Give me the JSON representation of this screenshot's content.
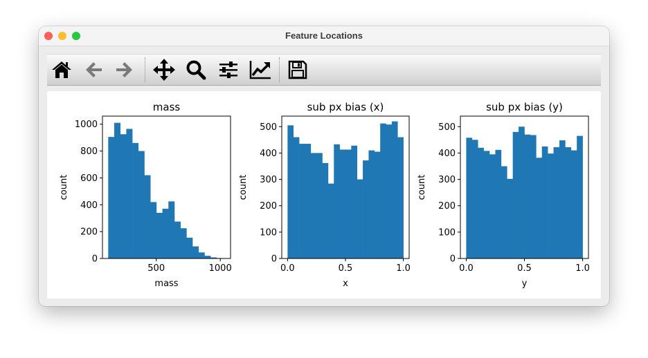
{
  "window": {
    "title": "Feature Locations"
  },
  "traffic_lights": {
    "close": "#ff5f57",
    "minimize": "#febc2e",
    "zoom": "#28c840"
  },
  "toolbar": {
    "items": [
      {
        "name": "home-button",
        "icon": "home-icon",
        "enabled": true
      },
      {
        "name": "back-button",
        "icon": "arrow-left-icon",
        "enabled": false
      },
      {
        "name": "forward-button",
        "icon": "arrow-right-icon",
        "enabled": false
      },
      {
        "name": "pan-button",
        "icon": "move-icon",
        "enabled": true
      },
      {
        "name": "zoom-button",
        "icon": "magnifier-icon",
        "enabled": true
      },
      {
        "name": "subplots-button",
        "icon": "sliders-icon",
        "enabled": true
      },
      {
        "name": "axes-edit-button",
        "icon": "line-chart-icon",
        "enabled": true
      },
      {
        "name": "save-button",
        "icon": "floppy-disk-icon",
        "enabled": true
      }
    ]
  },
  "bar_color": "#1f77b4",
  "chart_data": [
    {
      "type": "bar",
      "title": "mass",
      "xlabel": "mass",
      "ylabel": "count",
      "xlim": [
        80,
        1080
      ],
      "ylim": [
        0,
        1060
      ],
      "xticks": [
        500,
        1000
      ],
      "xtick_labels": [
        "500",
        "1000"
      ],
      "yticks": [
        0,
        200,
        400,
        600,
        800,
        1000
      ],
      "ytick_labels": [
        "0",
        "200",
        "400",
        "600",
        "800",
        "1000"
      ],
      "bin_edges": [
        125,
        172,
        219,
        266,
        313,
        360,
        407,
        454,
        501,
        548,
        595,
        642,
        689,
        736,
        783,
        830,
        877,
        924,
        971,
        1018,
        1065
      ],
      "counts": [
        905,
        1010,
        925,
        965,
        860,
        800,
        620,
        420,
        340,
        370,
        425,
        275,
        225,
        155,
        90,
        45,
        20,
        8,
        3,
        1
      ]
    },
    {
      "type": "bar",
      "title": "sub px bias (x)",
      "xlabel": "x",
      "ylabel": "count",
      "xlim": [
        -0.05,
        1.05
      ],
      "ylim": [
        0,
        540
      ],
      "xticks": [
        0.0,
        0.5,
        1.0
      ],
      "xtick_labels": [
        "0.0",
        "0.5",
        "1.0"
      ],
      "yticks": [
        0,
        100,
        200,
        300,
        400,
        500
      ],
      "ytick_labels": [
        "0",
        "100",
        "200",
        "300",
        "400",
        "500"
      ],
      "bin_edges": [
        0.0,
        0.05,
        0.1,
        0.15,
        0.2,
        0.25,
        0.3,
        0.35,
        0.4,
        0.45,
        0.5,
        0.55,
        0.6,
        0.65,
        0.7,
        0.75,
        0.8,
        0.85,
        0.9,
        0.95,
        1.0
      ],
      "counts": [
        505,
        460,
        435,
        435,
        400,
        400,
        362,
        284,
        433,
        413,
        413,
        428,
        300,
        372,
        410,
        405,
        512,
        508,
        520,
        460
      ]
    },
    {
      "type": "bar",
      "title": "sub px bias (y)",
      "xlabel": "y",
      "ylabel": "count",
      "xlim": [
        -0.05,
        1.05
      ],
      "ylim": [
        0,
        540
      ],
      "xticks": [
        0.0,
        0.5,
        1.0
      ],
      "xtick_labels": [
        "0.0",
        "0.5",
        "1.0"
      ],
      "yticks": [
        0,
        100,
        200,
        300,
        400,
        500
      ],
      "ytick_labels": [
        "0",
        "100",
        "200",
        "300",
        "400",
        "500"
      ],
      "bin_edges": [
        0.0,
        0.05,
        0.1,
        0.15,
        0.2,
        0.25,
        0.3,
        0.35,
        0.4,
        0.45,
        0.5,
        0.55,
        0.6,
        0.65,
        0.7,
        0.75,
        0.8,
        0.85,
        0.9,
        0.95,
        1.0
      ],
      "counts": [
        458,
        450,
        420,
        408,
        395,
        412,
        350,
        302,
        480,
        500,
        470,
        468,
        382,
        425,
        398,
        422,
        448,
        422,
        410,
        465
      ]
    }
  ]
}
